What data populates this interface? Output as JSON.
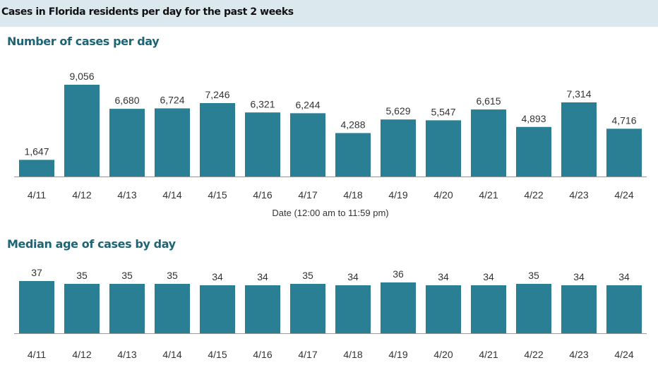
{
  "header": {
    "title": "Cases in Florida residents per day for the past 2 weeks"
  },
  "colors": {
    "bar": "#2b7f95",
    "header_bg": "#dbe9ef",
    "section_title": "#1d6475"
  },
  "chart_data": [
    {
      "type": "bar",
      "title": "Number of cases per day",
      "xlabel": "Date (12:00 am to 11:59 pm)",
      "ylabel": "",
      "categories": [
        "4/11",
        "4/12",
        "4/13",
        "4/14",
        "4/15",
        "4/16",
        "4/17",
        "4/18",
        "4/19",
        "4/20",
        "4/21",
        "4/22",
        "4/23",
        "4/24"
      ],
      "values": [
        1647,
        9056,
        6680,
        6724,
        7246,
        6321,
        6244,
        4288,
        5629,
        5547,
        6615,
        4893,
        7314,
        4716
      ],
      "data_labels": [
        "1,647",
        "9,056",
        "6,680",
        "6,724",
        "7,246",
        "6,321",
        "6,244",
        "4,288",
        "5,629",
        "5,547",
        "6,615",
        "4,893",
        "7,314",
        "4,716"
      ],
      "ylim": [
        0,
        9056
      ],
      "grid": false
    },
    {
      "type": "bar",
      "title": "Median age of cases by day",
      "xlabel": "",
      "ylabel": "",
      "categories": [
        "4/11",
        "4/12",
        "4/13",
        "4/14",
        "4/15",
        "4/16",
        "4/17",
        "4/18",
        "4/19",
        "4/20",
        "4/21",
        "4/22",
        "4/23",
        "4/24"
      ],
      "values": [
        37,
        35,
        35,
        35,
        34,
        34,
        35,
        34,
        36,
        34,
        34,
        35,
        34,
        34
      ],
      "data_labels": [
        "37",
        "35",
        "35",
        "35",
        "34",
        "34",
        "35",
        "34",
        "36",
        "34",
        "34",
        "35",
        "34",
        "34"
      ],
      "ylim": [
        0,
        37
      ],
      "grid": false
    }
  ]
}
